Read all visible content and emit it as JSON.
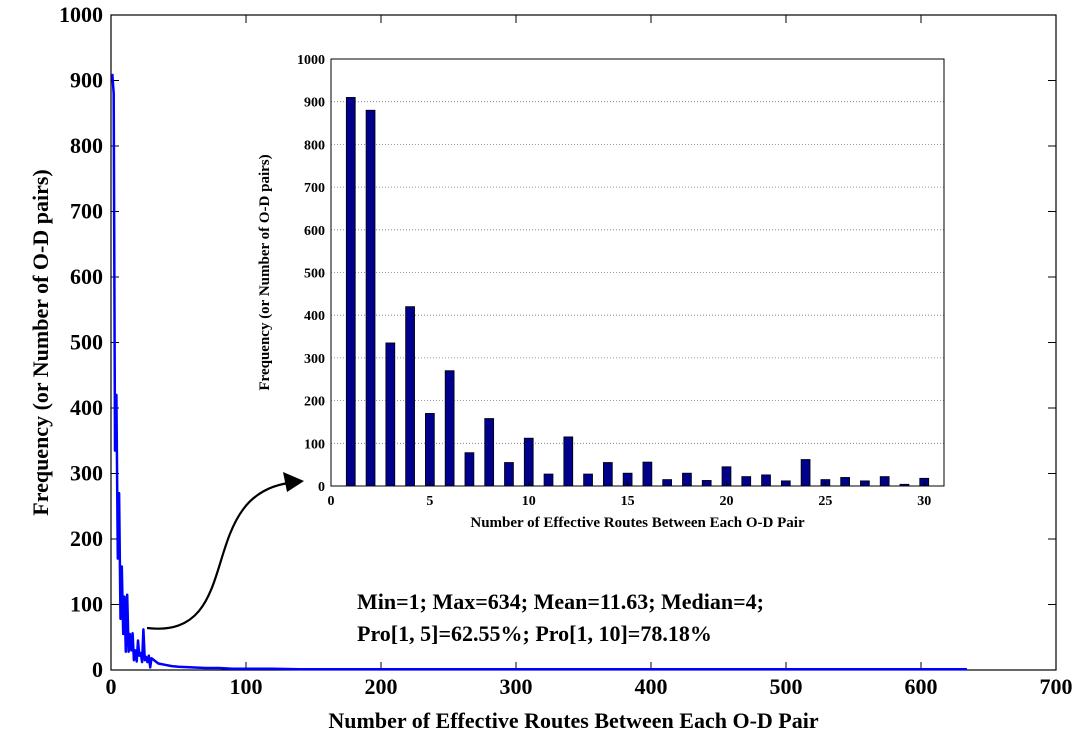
{
  "chart_data": [
    {
      "type": "line",
      "title": "",
      "xlabel": "Number of Effective Routes Between Each O-D Pair",
      "ylabel": "Frequency (or Number of O-D pairs)",
      "xlim": [
        0,
        700
      ],
      "ylim": [
        0,
        1000
      ],
      "xticks": [
        0,
        100,
        200,
        300,
        400,
        500,
        600,
        700
      ],
      "yticks": [
        0,
        100,
        200,
        300,
        400,
        500,
        600,
        700,
        800,
        900,
        1000
      ],
      "grid": false,
      "line_color": "#0000ff",
      "series": [
        {
          "x": [
            1,
            2,
            3,
            4,
            5,
            6,
            7,
            8,
            9,
            10,
            11,
            12,
            13,
            14,
            15,
            16,
            17,
            18,
            19,
            20,
            21,
            22,
            23,
            24,
            25,
            26,
            27,
            28,
            29,
            30,
            35,
            40,
            45,
            50,
            60,
            70,
            80,
            90,
            100,
            120,
            140,
            160,
            200,
            250,
            300,
            400,
            500,
            600,
            634
          ],
          "y": [
            910,
            880,
            335,
            420,
            170,
            270,
            78,
            158,
            55,
            112,
            28,
            115,
            28,
            55,
            30,
            56,
            15,
            30,
            13,
            45,
            22,
            26,
            12,
            62,
            15,
            20,
            12,
            22,
            4,
            18,
            10,
            8,
            6,
            5,
            4,
            3,
            3,
            2,
            2,
            2,
            1,
            1,
            1,
            1,
            1,
            1,
            1,
            1,
            1
          ]
        }
      ],
      "annotations": [
        "Min=1; Max=634; Mean=11.63; Median=4;",
        "Pro[1, 5]=62.55%; Pro[1, 10]=78.18%"
      ]
    },
    {
      "type": "bar",
      "title": "",
      "xlabel": "Number of Effective Routes Between Each O-D Pair",
      "ylabel": "Frequency (or Number of O-D pairs)",
      "xlim": [
        0,
        31
      ],
      "ylim": [
        0,
        1000
      ],
      "xticks": [
        0,
        5,
        10,
        15,
        20,
        25,
        30
      ],
      "yticks": [
        0,
        100,
        200,
        300,
        400,
        500,
        600,
        700,
        800,
        900,
        1000
      ],
      "grid": true,
      "bar_color": "#00008b",
      "categories": [
        1,
        2,
        3,
        4,
        5,
        6,
        7,
        8,
        9,
        10,
        11,
        12,
        13,
        14,
        15,
        16,
        17,
        18,
        19,
        20,
        21,
        22,
        23,
        24,
        25,
        26,
        27,
        28,
        29,
        30
      ],
      "values": [
        910,
        880,
        335,
        420,
        170,
        270,
        78,
        158,
        55,
        112,
        28,
        115,
        28,
        55,
        30,
        56,
        15,
        30,
        13,
        45,
        22,
        26,
        12,
        62,
        15,
        20,
        12,
        22,
        4,
        18
      ]
    }
  ]
}
